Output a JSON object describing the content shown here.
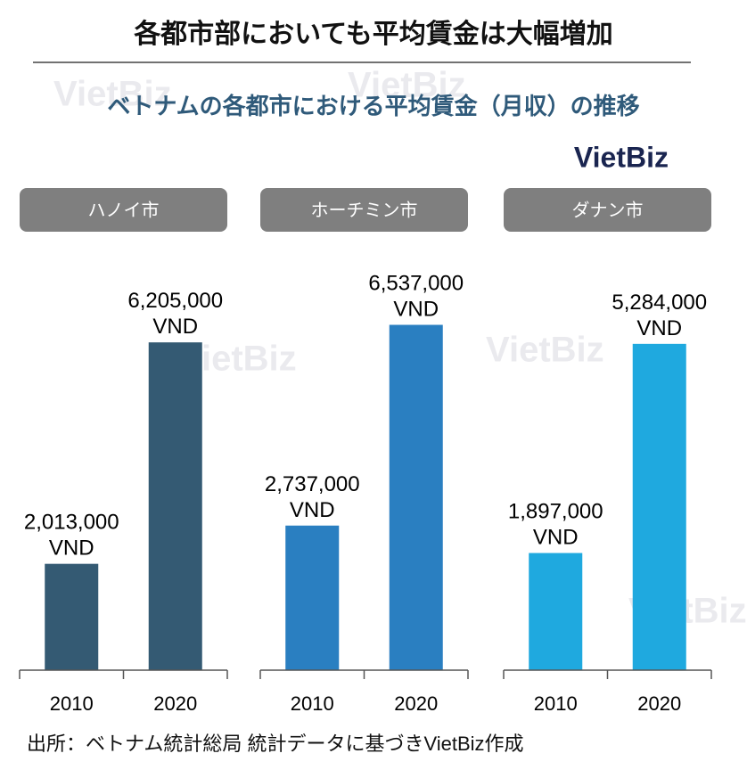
{
  "title": "各都市部においても平均賃金は大幅増加",
  "subtitle": "ベトナムの各都市における平均賃金（月収）の推移",
  "logo": "VietBiz",
  "watermark": "VietBiz",
  "source": "出所：ベトナム統計総局 統計データに基づきVietBiz作成",
  "chart_data": [
    {
      "type": "bar",
      "title": "ハノイ市",
      "categories": [
        "2010",
        "2020"
      ],
      "values": [
        2013000,
        6205000
      ],
      "value_labels": [
        "2,013,000 VND",
        "6,205,000 VND"
      ],
      "color": "#345a73",
      "ylim": [
        0,
        8300000
      ]
    },
    {
      "type": "bar",
      "title": "ホーチミン市",
      "categories": [
        "2010",
        "2020"
      ],
      "values": [
        2737000,
        6537000
      ],
      "value_labels": [
        "2,737,000 VND",
        "6,537,000 VND"
      ],
      "color": "#2a7fc1",
      "ylim": [
        0,
        8300000
      ]
    },
    {
      "type": "bar",
      "title": "ダナン市",
      "categories": [
        "2010",
        "2020"
      ],
      "values": [
        1897000,
        5284000
      ],
      "value_labels": [
        "1,897,000 VND",
        "5,284,000 VND"
      ],
      "color": "#1fa9df",
      "ylim": [
        0,
        7100000
      ]
    }
  ]
}
